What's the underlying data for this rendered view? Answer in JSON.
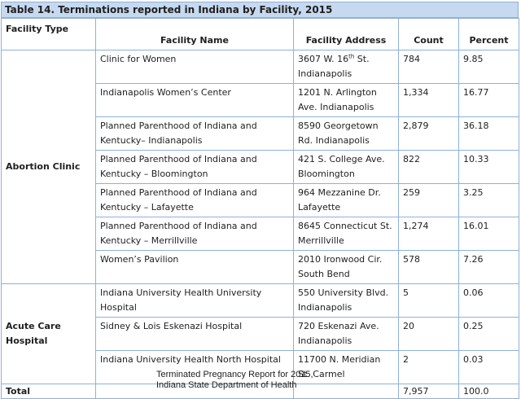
{
  "table": {
    "title": "Table 14. Terminations reported in Indiana by Facility, 2015",
    "headers": {
      "facility_type": "Facility Type",
      "facility_name": "Facility Name",
      "facility_address": "Facility Address",
      "count": "Count",
      "percent": "Percent"
    },
    "groups": [
      {
        "type": "Abortion Clinic",
        "rows": [
          {
            "name": "Clinic for Women",
            "address_pre": "3607 W. 16",
            "address_sup": "th",
            "address_post": " St. Indianapolis",
            "count": "784",
            "percent": "9.85"
          },
          {
            "name": "Indianapolis Women’s Center",
            "address": "1201 N. Arlington Ave. Indianapolis",
            "count": "1,334",
            "percent": "16.77"
          },
          {
            "name": "Planned Parenthood of Indiana and Kentucky– Indianapolis",
            "address": "8590 Georgetown Rd. Indianapolis",
            "count": "2,879",
            "percent": "36.18"
          },
          {
            "name": "Planned Parenthood of Indiana and Kentucky – Bloomington",
            "address": "421 S. College Ave. Bloomington",
            "count": "822",
            "percent": "10.33"
          },
          {
            "name": "Planned Parenthood of Indiana and Kentucky – Lafayette",
            "address": "964 Mezzanine Dr. Lafayette",
            "count": "259",
            "percent": "3.25"
          },
          {
            "name": "Planned Parenthood of Indiana and Kentucky – Merrillville",
            "address": "8645 Connecticut St. Merrillville",
            "count": "1,274",
            "percent": "16.01"
          },
          {
            "name": "Women’s Pavilion",
            "address": "2010 Ironwood Cir. South Bend",
            "count": "578",
            "percent": "7.26"
          }
        ]
      },
      {
        "type": "Acute Care Hospital",
        "rows": [
          {
            "name": "Indiana University Health University Hospital",
            "address": "550 University Blvd. Indianapolis",
            "count": "5",
            "percent": "0.06"
          },
          {
            "name": "Sidney & Lois Eskenazi Hospital",
            "address": "720 Eskenazi Ave. Indianapolis",
            "count": "20",
            "percent": "0.25"
          },
          {
            "name": "Indiana University Health North Hospital",
            "address": "11700 N. Meridian St. Carmel",
            "count": "2",
            "percent": "0.03"
          }
        ]
      }
    ],
    "total": {
      "label": "Total",
      "count": "7,957",
      "percent": "100.0"
    }
  },
  "source": {
    "line1": "Terminated Pregnancy Report for 2015,",
    "line2": "Indiana State Department of Health"
  }
}
